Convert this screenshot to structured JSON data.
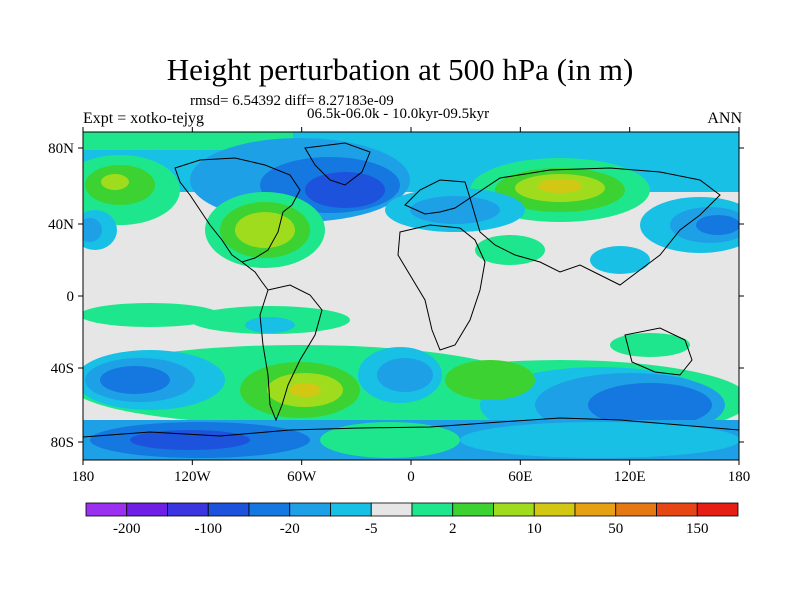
{
  "title": "Height perturbation at 500 hPa (in m)",
  "stats": "rmsd= 6.54392 diff= 8.27183e-09",
  "period": "06.5k-06.0k - 10.0kyr-09.5kyr",
  "experiment": "Expt = xotko-tejyg",
  "season": "ANN",
  "axes": {
    "x_ticks": [
      "180",
      "120W",
      "60W",
      "0",
      "60E",
      "120E",
      "180"
    ],
    "y_ticks": [
      "80N",
      "40N",
      "0",
      "40S",
      "80S"
    ]
  },
  "colorbar": {
    "colors": [
      "#9b30f0",
      "#6f1ee6",
      "#3a35e0",
      "#1c52dc",
      "#1478e0",
      "#1ea0e6",
      "#19c0e6",
      "#e6e6e6",
      "#1ee68c",
      "#3cd232",
      "#a0dc1e",
      "#d2c814",
      "#e6a014",
      "#e67814",
      "#e64614",
      "#e61e14"
    ],
    "labels": [
      "-200",
      "-100",
      "-20",
      "-5",
      "2",
      "10",
      "50",
      "150"
    ]
  },
  "palette": {
    "c_100": "#3a35e0",
    "c_50": "#1c52dc",
    "c_20": "#1478e0",
    "c_10": "#1ea0e6",
    "c_5": "#19c0e6",
    "neutral": "#e6e6e6",
    "p5": "#1ee68c",
    "p10": "#3cd232",
    "p20": "#a0dc1e",
    "p50": "#d2c814",
    "p100": "#e6a014"
  }
}
